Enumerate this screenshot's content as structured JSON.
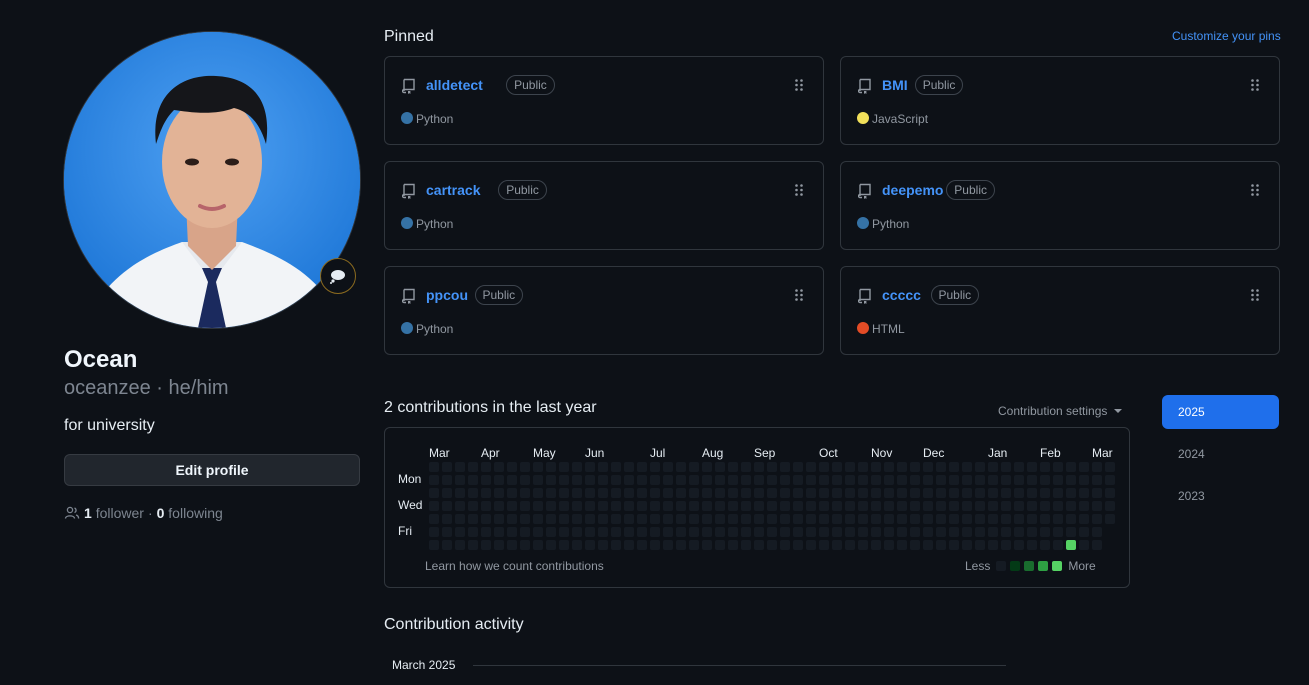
{
  "profile": {
    "name": "Ocean",
    "login_line": "oceanzee · he/him",
    "bio": "for university",
    "edit_label": "Edit profile",
    "followers_count": "1",
    "followers_label": "follower",
    "separator": "·",
    "following_count": "0",
    "following_label": "following",
    "status_icon": "thought-bubble-icon"
  },
  "pinned": {
    "title": "Pinned",
    "customize_label": "Customize your pins",
    "repos": [
      {
        "name": "alldetect",
        "visibility": "Public",
        "language": "Python",
        "lang_color": "#3572A5"
      },
      {
        "name": "BMI",
        "visibility": "Public",
        "language": "JavaScript",
        "lang_color": "#f1e05a"
      },
      {
        "name": "cartrack",
        "visibility": "Public",
        "language": "Python",
        "lang_color": "#3572A5"
      },
      {
        "name": "deepemo",
        "visibility": "Public",
        "language": "Python",
        "lang_color": "#3572A5"
      },
      {
        "name": "ppcou",
        "visibility": "Public",
        "language": "Python",
        "lang_color": "#3572A5"
      },
      {
        "name": "ccccc",
        "visibility": "Public",
        "language": "HTML",
        "lang_color": "#e34c26"
      }
    ]
  },
  "contributions": {
    "title": "2 contributions in the last year",
    "settings_label": "Contribution settings",
    "months": [
      "Mar",
      "Apr",
      "May",
      "Jun",
      "Jul",
      "Aug",
      "Sep",
      "Oct",
      "Nov",
      "Dec",
      "Jan",
      "Feb",
      "Mar"
    ],
    "days": [
      "Mon",
      "Wed",
      "Fri"
    ],
    "learn_label": "Learn how we count contributions",
    "legend_less": "Less",
    "legend_more": "More",
    "legend_colors": [
      "#151b23",
      "#033a16",
      "#196c2e",
      "#2ea043",
      "#56d364"
    ],
    "empty_color": "#151b23",
    "weeks": 53,
    "active_cells": [
      {
        "week": 49,
        "day": 6,
        "level": 4
      }
    ]
  },
  "years": [
    "2025",
    "2024",
    "2023"
  ],
  "active_year": "2025",
  "activity": {
    "title": "Contribution activity",
    "month_heading": "March 2025"
  }
}
